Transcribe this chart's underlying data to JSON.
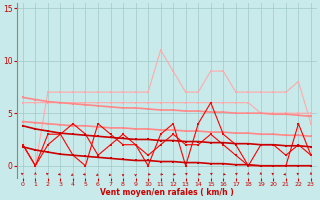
{
  "x": [
    0,
    1,
    2,
    3,
    4,
    5,
    6,
    7,
    8,
    9,
    10,
    11,
    12,
    13,
    14,
    15,
    16,
    17,
    18,
    19,
    20,
    21,
    22,
    23
  ],
  "series": [
    {
      "y": [
        2,
        0,
        7,
        7,
        7,
        7,
        7,
        7,
        7,
        7,
        7,
        11,
        9,
        7,
        7,
        9,
        9,
        7,
        7,
        7,
        7,
        7,
        8,
        4
      ],
      "color": "#ffaaaa",
      "lw": 0.8,
      "ms": 1.5,
      "marker": "s"
    },
    {
      "y": [
        6,
        6,
        6,
        6,
        6,
        6,
        6,
        6,
        6,
        6,
        6,
        6,
        6,
        6,
        6,
        6,
        6,
        6,
        6,
        5,
        5,
        5,
        5,
        5
      ],
      "color": "#ffaaaa",
      "lw": 0.8,
      "ms": 1.5,
      "marker": "s"
    },
    {
      "y": [
        6.5,
        6.3,
        6.1,
        6.0,
        5.9,
        5.8,
        5.7,
        5.6,
        5.5,
        5.5,
        5.4,
        5.3,
        5.3,
        5.2,
        5.2,
        5.1,
        5.1,
        5.0,
        5.0,
        5.0,
        4.9,
        4.9,
        4.8,
        4.7
      ],
      "color": "#ff8888",
      "lw": 1.2,
      "ms": 1.5,
      "marker": "s"
    },
    {
      "y": [
        4.2,
        4.1,
        4.0,
        3.9,
        3.8,
        3.8,
        3.7,
        3.6,
        3.6,
        3.5,
        3.5,
        3.4,
        3.4,
        3.3,
        3.3,
        3.2,
        3.2,
        3.1,
        3.1,
        3.0,
        3.0,
        2.9,
        2.9,
        2.8
      ],
      "color": "#ff8888",
      "lw": 1.2,
      "ms": 1.5,
      "marker": "s"
    },
    {
      "comment": "bright red jagged line - higher amplitude peaks 0=2,2=2,5=0,6=4,7=3,11=3,14=4,15=6,16=3,21=0,22=4",
      "y": [
        2,
        0,
        2,
        3,
        1,
        0,
        4,
        3,
        2,
        2,
        0,
        3,
        4,
        0,
        4,
        6,
        3,
        2,
        0,
        0,
        0,
        0,
        4,
        1
      ],
      "color": "#ff0000",
      "lw": 0.8,
      "ms": 1.5,
      "marker": "s"
    },
    {
      "y": [
        2,
        0,
        3,
        3,
        4,
        3,
        1,
        2,
        3,
        2,
        1,
        2,
        3,
        2,
        2,
        3,
        2,
        1,
        0,
        2,
        2,
        1,
        2,
        1
      ],
      "color": "#ff0000",
      "lw": 0.8,
      "ms": 1.5,
      "marker": "s"
    },
    {
      "y": [
        3.8,
        3.5,
        3.3,
        3.1,
        3.0,
        2.9,
        2.8,
        2.7,
        2.6,
        2.5,
        2.5,
        2.4,
        2.4,
        2.3,
        2.3,
        2.2,
        2.2,
        2.1,
        2.1,
        2.0,
        2.0,
        1.9,
        1.9,
        1.8
      ],
      "color": "#cc0000",
      "lw": 1.2,
      "ms": 1.5,
      "marker": "s"
    },
    {
      "y": [
        1.8,
        1.5,
        1.3,
        1.1,
        1.0,
        0.9,
        0.8,
        0.7,
        0.6,
        0.5,
        0.5,
        0.4,
        0.4,
        0.3,
        0.3,
        0.2,
        0.2,
        0.1,
        0.1,
        0.0,
        0.0,
        0.0,
        0.0,
        0.0
      ],
      "color": "#cc0000",
      "lw": 1.2,
      "ms": 1.5,
      "marker": "s"
    }
  ],
  "xlabel": "Vent moyen/en rafales ( km/h )",
  "xlim": [
    -0.5,
    23.5
  ],
  "ylim": [
    -1.2,
    15.5
  ],
  "yticks": [
    0,
    5,
    10,
    15
  ],
  "xticks": [
    0,
    1,
    2,
    3,
    4,
    5,
    6,
    7,
    8,
    9,
    10,
    11,
    12,
    13,
    14,
    15,
    16,
    17,
    18,
    19,
    20,
    21,
    22,
    23
  ],
  "bg_color": "#c8eaea",
  "grid_color": "#a0c8c8",
  "tick_color": "#cc0000",
  "label_color": "#cc0000"
}
